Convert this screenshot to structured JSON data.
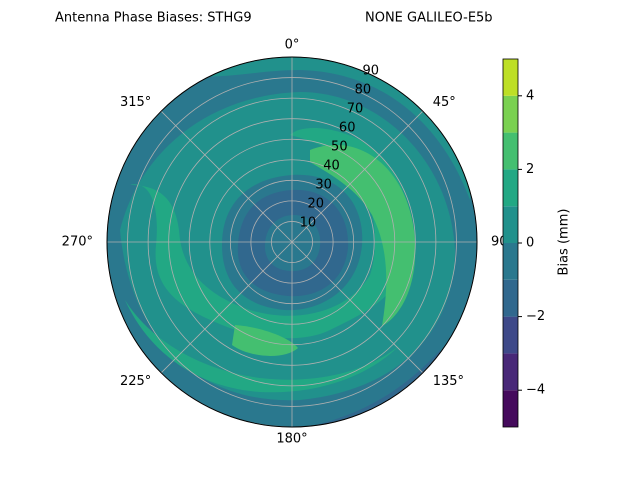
{
  "chart_data": {
    "type": "polar-contour",
    "title": "Antenna Phase Biases: STHG9",
    "subtitle": "NONE GALILEO-E5b",
    "theta_labels": [
      "0°",
      "45°",
      "90°",
      "135°",
      "180°",
      "225°",
      "270°",
      "315°"
    ],
    "rlim": [
      0,
      90
    ],
    "rticks": [
      10,
      20,
      30,
      40,
      50,
      60,
      70,
      80,
      90
    ],
    "levels": [
      -5,
      -4,
      -3,
      -2,
      -1,
      0,
      1,
      2,
      3,
      4,
      5
    ],
    "colors": [
      "#450a5c",
      "#482878",
      "#3e4989",
      "#31688e",
      "#2a788e",
      "#21918c",
      "#22a884",
      "#44bf70",
      "#7ad151",
      "#bddf26"
    ],
    "colorbar_label": "Bias (mm)",
    "clim": [
      -5,
      5
    ],
    "cticks": [
      {
        "value": -4,
        "label": "−4"
      },
      {
        "value": -2,
        "label": "−2"
      },
      0,
      2,
      4
    ],
    "grid": true
  }
}
